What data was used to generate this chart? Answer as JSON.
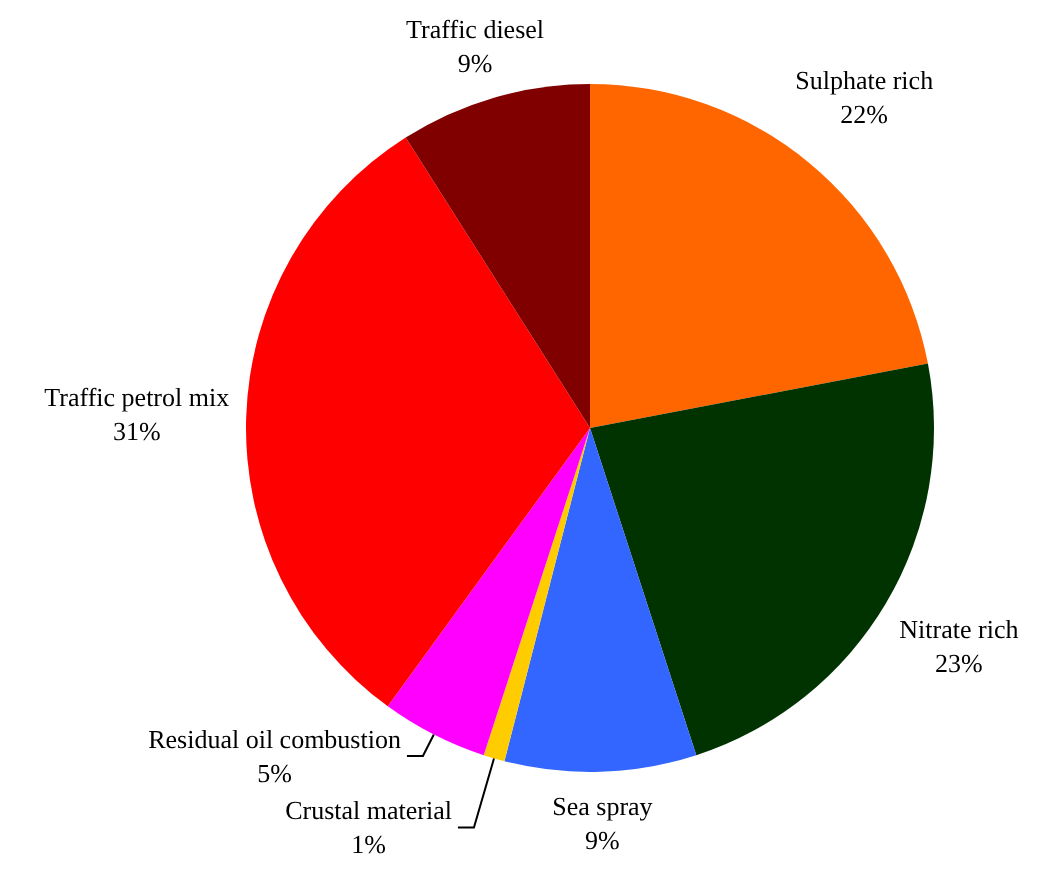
{
  "chart_data": {
    "type": "pie",
    "categories": [
      "Sulphate rich",
      "Nitrate rich",
      "Sea spray",
      "Crustal material",
      "Residual oil combustion",
      "Traffic petrol mix",
      "Traffic diesel"
    ],
    "values": [
      22,
      23,
      9,
      1,
      5,
      31,
      9
    ],
    "value_labels": [
      "22%",
      "23%",
      "9%",
      "1%",
      "5%",
      "31%",
      "9%"
    ],
    "colors": [
      "#ff6600",
      "#003300",
      "#3366ff",
      "#ffcc00",
      "#ff00ff",
      "#ff0000",
      "#800000"
    ]
  }
}
